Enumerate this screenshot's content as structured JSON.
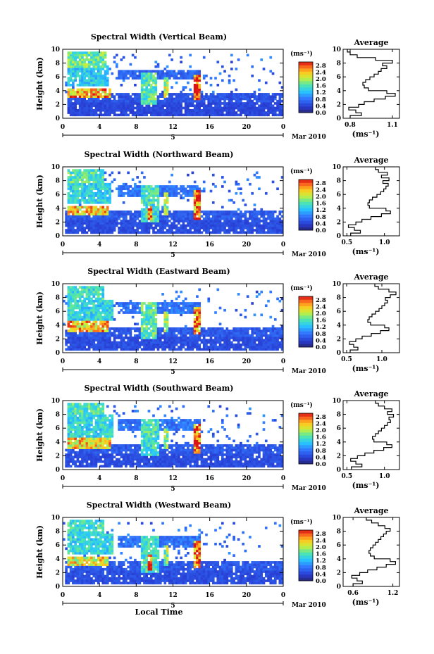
{
  "chart_data": [
    {
      "type": "heatmap",
      "title": "Spectral Width (Vertical Beam)",
      "ylabel": "Height (km)",
      "xlim": [
        0,
        24
      ],
      "ylim": [
        0,
        10
      ],
      "x_ticks": [
        "0",
        "4",
        "8",
        "12",
        "16",
        "20",
        "0"
      ],
      "y_ticks": [
        "0",
        "2",
        "4",
        "6",
        "8",
        "10"
      ],
      "date_marks": [
        "5",
        "Mar 2010"
      ],
      "colorbar": {
        "unit": "(ms⁻¹)",
        "ticks": [
          "0.0",
          "0.4",
          "0.8",
          "1.2",
          "1.6",
          "2.0",
          "2.4",
          "2.8"
        ],
        "range": [
          0,
          3.0
        ]
      },
      "features": [
        {
          "t0": 0.4,
          "t1": 24,
          "h0": 0.3,
          "h1": 2.2,
          "v": 0.45
        },
        {
          "t0": 0.4,
          "t1": 24,
          "h0": 2.4,
          "h1": 3.6,
          "v": 0.55
        },
        {
          "t0": 0.6,
          "t1": 5.2,
          "h0": 3.0,
          "h1": 4.4,
          "v": 2.5
        },
        {
          "t0": 0.4,
          "t1": 5.0,
          "h0": 4.6,
          "h1": 7.6,
          "v": 1.3
        },
        {
          "t0": 0.6,
          "t1": 4.8,
          "h0": 7.4,
          "h1": 9.8,
          "v": 1.7
        },
        {
          "t0": 8.6,
          "t1": 10.2,
          "h0": 2.0,
          "h1": 6.6,
          "v": 1.6
        },
        {
          "t0": 11.0,
          "t1": 11.6,
          "h0": 3.0,
          "h1": 6.0,
          "v": 2.0
        },
        {
          "t0": 14.2,
          "t1": 15.0,
          "h0": 2.6,
          "h1": 6.2,
          "v": 2.7
        },
        {
          "t0": 6.0,
          "t1": 15.0,
          "h0": 5.6,
          "h1": 7.0,
          "v": 0.7
        }
      ],
      "average_profile": {
        "title": "Average",
        "xlabel": "(ms⁻¹)",
        "xlim": [
          0.75,
          1.15
        ],
        "x_ticks": [
          {
            "value": 0.8,
            "label": "0.8"
          },
          {
            "value": 1.1,
            "label": "1.1"
          }
        ],
        "y_ticks": [
          "0",
          "2",
          "4",
          "6",
          "8",
          "10"
        ],
        "height": [
          0.2,
          0.6,
          1.0,
          1.4,
          1.8,
          2.2,
          2.6,
          3.0,
          3.4,
          3.8,
          4.2,
          4.6,
          5.0,
          5.4,
          5.8,
          6.2,
          6.6,
          7.0,
          7.4,
          7.8,
          8.2,
          8.6,
          9.0,
          9.4,
          9.8
        ],
        "values": [
          0.8,
          0.88,
          0.84,
          0.79,
          0.86,
          0.9,
          0.97,
          1.05,
          1.12,
          1.06,
          0.93,
          0.9,
          0.89,
          0.91,
          0.94,
          0.97,
          1.0,
          1.02,
          1.06,
          1.03,
          1.1,
          0.98,
          0.85,
          0.8,
          0.78
        ]
      }
    },
    {
      "type": "heatmap",
      "title": "Spectral Width (Northward Beam)",
      "ylabel": "Height (km)",
      "xlim": [
        0,
        24
      ],
      "ylim": [
        0,
        10
      ],
      "x_ticks": [
        "0",
        "4",
        "8",
        "12",
        "16",
        "20",
        "0"
      ],
      "y_ticks": [
        "0",
        "2",
        "4",
        "6",
        "8",
        "10"
      ],
      "date_marks": [
        "5",
        "Mar 2010"
      ],
      "colorbar": {
        "unit": "(ms⁻¹)",
        "ticks": [
          "0.0",
          "0.4",
          "0.8",
          "1.2",
          "1.6",
          "2.0",
          "2.4",
          "2.8"
        ],
        "range": [
          0,
          3.0
        ]
      },
      "features": [
        {
          "t0": 0.2,
          "t1": 24,
          "h0": 0.3,
          "h1": 2.2,
          "v": 0.5
        },
        {
          "t0": 0.2,
          "t1": 24,
          "h0": 2.4,
          "h1": 3.8,
          "v": 0.6
        },
        {
          "t0": 0.6,
          "t1": 5.0,
          "h0": 3.0,
          "h1": 4.4,
          "v": 2.3
        },
        {
          "t0": 0.4,
          "t1": 5.2,
          "h0": 4.6,
          "h1": 7.6,
          "v": 1.4
        },
        {
          "t0": 0.6,
          "t1": 4.6,
          "h0": 7.6,
          "h1": 9.8,
          "v": 1.6
        },
        {
          "t0": 8.4,
          "t1": 10.4,
          "h0": 2.0,
          "h1": 7.4,
          "v": 1.5
        },
        {
          "t0": 9.2,
          "t1": 9.8,
          "h0": 2.2,
          "h1": 4.4,
          "v": 2.7
        },
        {
          "t0": 11.0,
          "t1": 11.6,
          "h0": 3.0,
          "h1": 6.2,
          "v": 1.9
        },
        {
          "t0": 14.2,
          "t1": 15.0,
          "h0": 2.4,
          "h1": 6.8,
          "v": 2.6
        },
        {
          "t0": 6.0,
          "t1": 15.0,
          "h0": 5.6,
          "h1": 7.2,
          "v": 0.8
        }
      ],
      "average_profile": {
        "title": "Average",
        "xlabel": "(ms⁻¹)",
        "xlim": [
          0.45,
          1.2
        ],
        "x_ticks": [
          {
            "value": 0.5,
            "label": "0.5"
          },
          {
            "value": 1.0,
            "label": "1.0"
          }
        ],
        "y_ticks": [
          "0",
          "2",
          "4",
          "6",
          "8",
          "10"
        ],
        "height": [
          0.2,
          0.6,
          1.0,
          1.4,
          1.8,
          2.2,
          2.6,
          3.0,
          3.4,
          3.8,
          4.2,
          4.6,
          5.0,
          5.4,
          5.8,
          6.2,
          6.6,
          7.0,
          7.4,
          7.8,
          8.2,
          8.6,
          9.0,
          9.4,
          9.8
        ],
        "values": [
          0.55,
          0.68,
          0.6,
          0.52,
          0.62,
          0.7,
          0.82,
          0.96,
          1.08,
          1.02,
          0.8,
          0.78,
          0.8,
          0.84,
          0.9,
          0.95,
          0.99,
          1.02,
          1.05,
          0.98,
          1.06,
          0.96,
          1.04,
          0.92,
          0.88
        ]
      }
    },
    {
      "type": "heatmap",
      "title": "Spectral Width (Eastward Beam)",
      "ylabel": "Height (km)",
      "xlim": [
        0,
        24
      ],
      "ylim": [
        0,
        10
      ],
      "x_ticks": [
        "0",
        "4",
        "8",
        "12",
        "16",
        "20",
        "0"
      ],
      "y_ticks": [
        "0",
        "2",
        "4",
        "6",
        "8",
        "10"
      ],
      "date_marks": [
        "5",
        "Mar 2010"
      ],
      "colorbar": {
        "unit": "(ms⁻¹)",
        "ticks": [
          "0.0",
          "0.4",
          "0.8",
          "1.2",
          "1.6",
          "2.0",
          "2.4",
          "2.8"
        ],
        "range": [
          0,
          3.0
        ]
      },
      "features": [
        {
          "t0": 0.2,
          "t1": 24,
          "h0": 0.3,
          "h1": 2.2,
          "v": 0.5
        },
        {
          "t0": 0.2,
          "t1": 24,
          "h0": 2.4,
          "h1": 3.8,
          "v": 0.6
        },
        {
          "t0": 0.6,
          "t1": 5.0,
          "h0": 3.0,
          "h1": 4.6,
          "v": 2.4
        },
        {
          "t0": 0.4,
          "t1": 5.4,
          "h0": 4.6,
          "h1": 7.8,
          "v": 1.4
        },
        {
          "t0": 0.6,
          "t1": 4.6,
          "h0": 7.8,
          "h1": 9.8,
          "v": 1.5
        },
        {
          "t0": 8.6,
          "t1": 10.2,
          "h0": 2.0,
          "h1": 7.2,
          "v": 1.6
        },
        {
          "t0": 11.0,
          "t1": 11.6,
          "h0": 3.0,
          "h1": 6.0,
          "v": 1.8
        },
        {
          "t0": 14.2,
          "t1": 15.0,
          "h0": 2.6,
          "h1": 6.6,
          "v": 2.6
        },
        {
          "t0": 6.0,
          "t1": 15.0,
          "h0": 5.6,
          "h1": 7.2,
          "v": 0.8
        }
      ],
      "average_profile": {
        "title": "Average",
        "xlabel": "(ms⁻¹)",
        "xlim": [
          0.45,
          1.25
        ],
        "x_ticks": [
          {
            "value": 0.5,
            "label": "0.5"
          },
          {
            "value": 1.0,
            "label": "1.0"
          }
        ],
        "y_ticks": [
          "0",
          "2",
          "4",
          "6",
          "8",
          "10"
        ],
        "height": [
          0.2,
          0.6,
          1.0,
          1.4,
          1.8,
          2.2,
          2.6,
          3.0,
          3.4,
          3.8,
          4.2,
          4.6,
          5.0,
          5.4,
          5.8,
          6.2,
          6.6,
          7.0,
          7.4,
          7.8,
          8.2,
          8.6,
          9.0,
          9.4,
          9.8
        ],
        "values": [
          0.55,
          0.66,
          0.6,
          0.54,
          0.63,
          0.72,
          0.85,
          0.98,
          1.1,
          1.04,
          0.84,
          0.8,
          0.82,
          0.86,
          0.91,
          0.96,
          1.0,
          1.04,
          1.08,
          1.05,
          1.12,
          1.2,
          1.1,
          0.95,
          0.9
        ]
      }
    },
    {
      "type": "heatmap",
      "title": "Spectral Width (Southward Beam)",
      "ylabel": "Height (km)",
      "xlim": [
        0,
        24
      ],
      "ylim": [
        0,
        10
      ],
      "x_ticks": [
        "0",
        "4",
        "8",
        "12",
        "16",
        "20",
        "0"
      ],
      "y_ticks": [
        "0",
        "2",
        "4",
        "6",
        "8",
        "10"
      ],
      "date_marks": [
        "5",
        "Mar 2010"
      ],
      "colorbar": {
        "unit": "(ms⁻¹)",
        "ticks": [
          "0.0",
          "0.4",
          "0.8",
          "1.2",
          "1.6",
          "2.0",
          "2.4",
          "2.8"
        ],
        "range": [
          0,
          3.0
        ]
      },
      "features": [
        {
          "t0": 0.2,
          "t1": 24,
          "h0": 0.3,
          "h1": 2.2,
          "v": 0.5
        },
        {
          "t0": 0.2,
          "t1": 24,
          "h0": 2.4,
          "h1": 3.8,
          "v": 0.6
        },
        {
          "t0": 0.6,
          "t1": 5.2,
          "h0": 3.0,
          "h1": 4.6,
          "v": 2.3
        },
        {
          "t0": 0.4,
          "t1": 5.4,
          "h0": 4.6,
          "h1": 8.0,
          "v": 1.4
        },
        {
          "t0": 0.6,
          "t1": 4.6,
          "h0": 8.0,
          "h1": 9.8,
          "v": 1.6
        },
        {
          "t0": 8.4,
          "t1": 10.4,
          "h0": 2.0,
          "h1": 7.4,
          "v": 1.5
        },
        {
          "t0": 11.0,
          "t1": 11.6,
          "h0": 3.0,
          "h1": 6.0,
          "v": 1.8
        },
        {
          "t0": 14.2,
          "t1": 15.0,
          "h0": 2.4,
          "h1": 6.6,
          "v": 2.7
        },
        {
          "t0": 6.0,
          "t1": 15.0,
          "h0": 5.6,
          "h1": 7.4,
          "v": 0.8
        }
      ],
      "average_profile": {
        "title": "Average",
        "xlabel": "(ms⁻¹)",
        "xlim": [
          0.45,
          1.2
        ],
        "x_ticks": [
          {
            "value": 0.5,
            "label": "0.5"
          },
          {
            "value": 1.0,
            "label": "1.0"
          }
        ],
        "y_ticks": [
          "0",
          "2",
          "4",
          "6",
          "8",
          "10"
        ],
        "height": [
          0.2,
          0.6,
          1.0,
          1.4,
          1.8,
          2.2,
          2.6,
          3.0,
          3.4,
          3.8,
          4.2,
          4.6,
          5.0,
          5.4,
          5.8,
          6.2,
          6.6,
          7.0,
          7.4,
          7.8,
          8.2,
          8.6,
          9.0,
          9.4,
          9.8
        ],
        "values": [
          0.56,
          0.7,
          0.62,
          0.55,
          0.64,
          0.74,
          0.86,
          0.99,
          1.1,
          1.03,
          0.86,
          0.84,
          0.88,
          0.92,
          0.96,
          1.0,
          1.04,
          1.08,
          1.06,
          1.12,
          1.04,
          1.1,
          1.0,
          0.92,
          0.88
        ]
      }
    },
    {
      "type": "heatmap",
      "title": "Spectral Width (Westward Beam)",
      "ylabel": "Height (km)",
      "xlabel": "Local Time",
      "xlim": [
        0,
        24
      ],
      "ylim": [
        0,
        10
      ],
      "x_ticks": [
        "0",
        "4",
        "8",
        "12",
        "16",
        "20",
        "0"
      ],
      "y_ticks": [
        "0",
        "2",
        "4",
        "6",
        "8",
        "10"
      ],
      "date_marks": [
        "5",
        "Mar 2010"
      ],
      "colorbar": {
        "unit": "(ms⁻¹)",
        "ticks": [
          "0.0",
          "0.4",
          "0.8",
          "1.2",
          "1.6",
          "2.0",
          "2.4",
          "2.8"
        ],
        "range": [
          0,
          3.0
        ]
      },
      "features": [
        {
          "t0": 0.2,
          "t1": 24,
          "h0": 0.3,
          "h1": 2.2,
          "v": 0.5
        },
        {
          "t0": 0.2,
          "t1": 24,
          "h0": 2.4,
          "h1": 3.6,
          "v": 0.6
        },
        {
          "t0": 0.6,
          "t1": 5.0,
          "h0": 3.0,
          "h1": 4.4,
          "v": 2.2
        },
        {
          "t0": 0.4,
          "t1": 5.4,
          "h0": 4.6,
          "h1": 7.8,
          "v": 1.4
        },
        {
          "t0": 0.6,
          "t1": 4.6,
          "h0": 7.8,
          "h1": 9.8,
          "v": 1.5
        },
        {
          "t0": 8.6,
          "t1": 10.4,
          "h0": 2.0,
          "h1": 7.4,
          "v": 1.5
        },
        {
          "t0": 9.2,
          "t1": 9.8,
          "h0": 2.4,
          "h1": 4.6,
          "v": 2.7
        },
        {
          "t0": 11.0,
          "t1": 11.6,
          "h0": 3.0,
          "h1": 6.0,
          "v": 1.8
        },
        {
          "t0": 14.2,
          "t1": 15.0,
          "h0": 2.6,
          "h1": 6.6,
          "v": 2.6
        },
        {
          "t0": 6.0,
          "t1": 15.0,
          "h0": 5.6,
          "h1": 7.2,
          "v": 0.8
        }
      ],
      "average_profile": {
        "title": "Average",
        "xlabel": "(ms⁻¹)",
        "xlim": [
          0.45,
          1.3
        ],
        "x_ticks": [
          {
            "value": 0.6,
            "label": "0.6"
          },
          {
            "value": 1.2,
            "label": "1.2"
          }
        ],
        "y_ticks": [
          "0",
          "2",
          "4",
          "6",
          "8",
          "10"
        ],
        "height": [
          0.2,
          0.6,
          1.0,
          1.4,
          1.8,
          2.2,
          2.6,
          3.0,
          3.4,
          3.8,
          4.2,
          4.6,
          5.0,
          5.4,
          5.8,
          6.2,
          6.6,
          7.0,
          7.4,
          7.8,
          8.2,
          8.6,
          9.0,
          9.4,
          9.8
        ],
        "values": [
          0.6,
          0.74,
          0.66,
          0.58,
          0.7,
          0.82,
          0.96,
          1.1,
          1.24,
          1.16,
          0.92,
          0.86,
          0.84,
          0.86,
          0.9,
          0.94,
          0.98,
          1.02,
          1.06,
          1.1,
          1.16,
          1.08,
          0.98,
          0.88,
          0.8
        ]
      }
    }
  ]
}
